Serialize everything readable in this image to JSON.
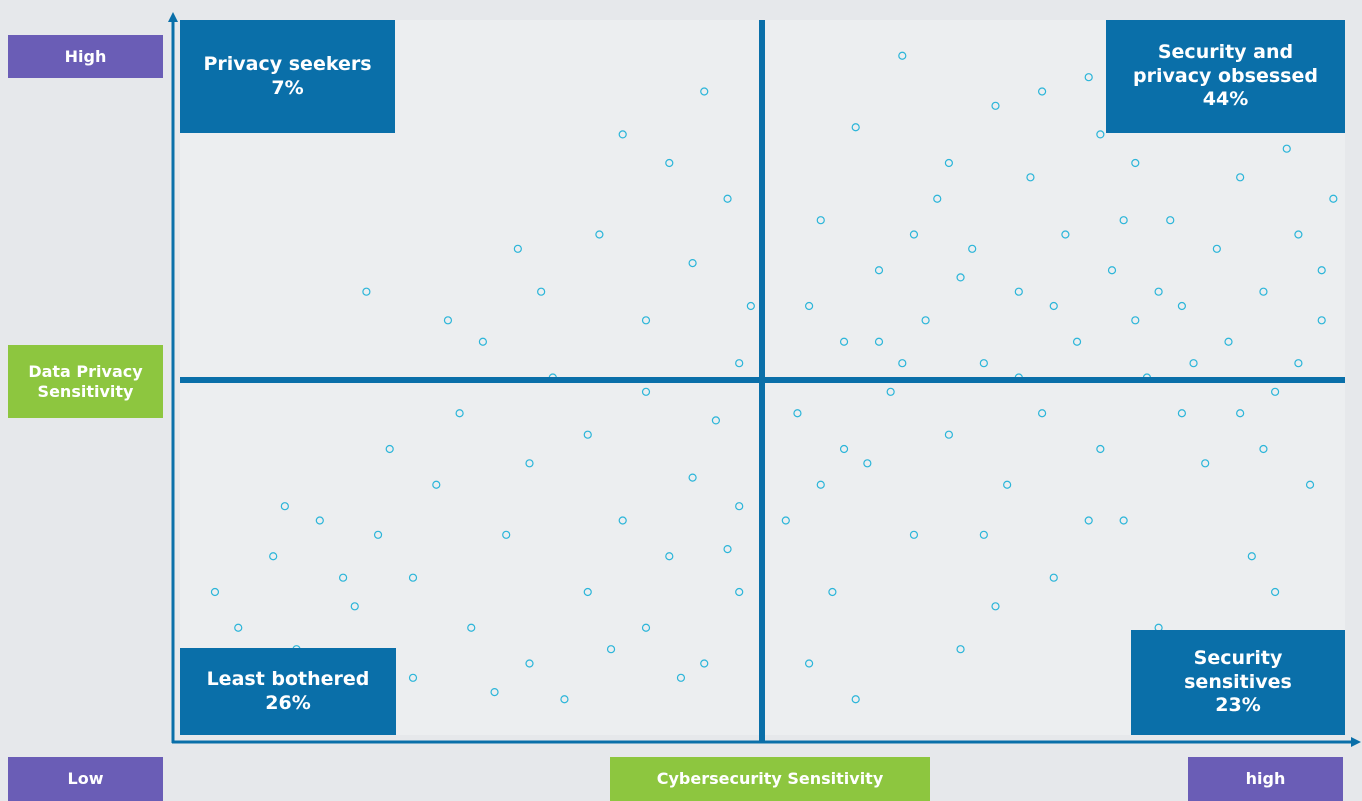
{
  "chart_data": {
    "type": "scatter",
    "x_axis": {
      "label": "Cybersecurity Sensitivity",
      "low": "Low",
      "high": "high"
    },
    "y_axis": {
      "label": "Data Privacy Sensitivity",
      "high": "High"
    },
    "quadrants": [
      {
        "lines": [
          "Privacy seekers",
          "7%"
        ]
      },
      {
        "lines": [
          "Security and",
          "privacy obsessed",
          "44%"
        ]
      },
      {
        "lines": [
          "Least bothered",
          "26%"
        ]
      },
      {
        "lines": [
          "Security",
          "sensitives",
          "23%"
        ]
      }
    ],
    "xlim": [
      0,
      100
    ],
    "ylim": [
      0,
      100
    ],
    "color": "#2bb5d9",
    "x": [
      3,
      5,
      8,
      10,
      12,
      15,
      6,
      18,
      20,
      22,
      25,
      24,
      28,
      30,
      30,
      32,
      35,
      35,
      38,
      40,
      40,
      42,
      44,
      45,
      46,
      48,
      48,
      33,
      27,
      20,
      14,
      9,
      17,
      37,
      43,
      47,
      26,
      31,
      36,
      40,
      44,
      47,
      49,
      42,
      38,
      29,
      23,
      16,
      45,
      48,
      52,
      53,
      54,
      55,
      56,
      57,
      58,
      59,
      60,
      61,
      62,
      63,
      64,
      65,
      66,
      67,
      68,
      69,
      70,
      71,
      72,
      73,
      74,
      75,
      76,
      77,
      78,
      79,
      80,
      81,
      82,
      83,
      84,
      85,
      86,
      87,
      88,
      89,
      90,
      91,
      92,
      93,
      94,
      95,
      96,
      97,
      98,
      99,
      54,
      58,
      62,
      66,
      70,
      74,
      78,
      82,
      86,
      90,
      94,
      98,
      57,
      63,
      69,
      75,
      81,
      87,
      93,
      60,
      72,
      84,
      96,
      55,
      67,
      79,
      91
    ],
    "y": [
      20,
      15,
      25,
      12,
      30,
      18,
      10,
      40,
      22,
      35,
      15,
      45,
      28,
      10,
      38,
      50,
      20,
      42,
      30,
      15,
      48,
      25,
      36,
      10,
      44,
      20,
      32,
      5,
      6,
      8,
      22,
      32,
      28,
      12,
      8,
      26,
      55,
      62,
      70,
      58,
      66,
      75,
      60,
      80,
      84,
      68,
      58,
      62,
      90,
      52,
      30,
      45,
      60,
      72,
      20,
      55,
      85,
      38,
      65,
      48,
      95,
      28,
      58,
      75,
      42,
      12,
      68,
      52,
      88,
      35,
      62,
      78,
      45,
      22,
      70,
      55,
      92,
      40,
      65,
      30,
      80,
      50,
      15,
      72,
      60,
      85,
      38,
      68,
      55,
      78,
      25,
      62,
      48,
      82,
      70,
      35,
      58,
      75,
      10,
      5,
      52,
      80,
      18,
      90,
      30,
      58,
      45,
      88,
      20,
      65,
      40,
      70,
      28,
      60,
      72,
      52,
      40,
      55,
      50,
      62,
      52,
      35,
      64,
      84,
      45
    ]
  }
}
